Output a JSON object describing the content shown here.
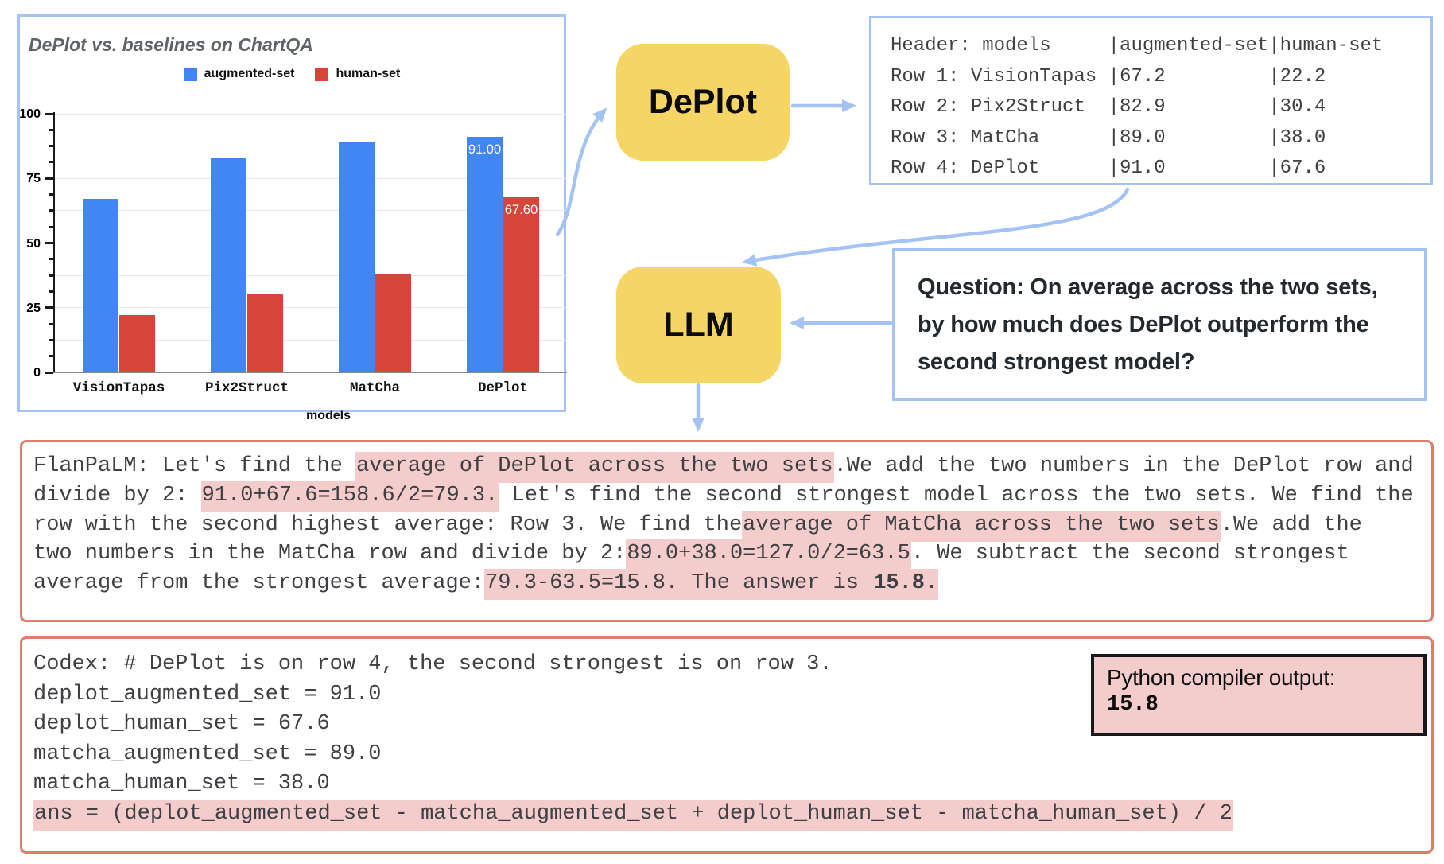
{
  "chart_data": {
    "type": "bar",
    "title": "DePlot vs. baselines on ChartQA",
    "categories": [
      "VisionTapas",
      "Pix2Struct",
      "MatCha",
      "DePlot"
    ],
    "series": [
      {
        "name": "augmented-set",
        "color": "#4285f4",
        "values": [
          67.2,
          82.9,
          89.0,
          91.0
        ]
      },
      {
        "name": "human-set",
        "color": "#d7453a",
        "values": [
          22.2,
          30.4,
          38.0,
          67.6
        ]
      }
    ],
    "bar_value_labels": [
      [
        null,
        null,
        null,
        "91.00"
      ],
      [
        null,
        null,
        null,
        "67.60"
      ]
    ],
    "xlabel": "models",
    "ylabel": "",
    "ylim": [
      0,
      100
    ],
    "yticks": [
      0,
      25,
      50,
      75,
      100
    ],
    "grid": true,
    "legend_position": "top"
  },
  "pipeline": {
    "deplot_label": "DePlot",
    "llm_label": "LLM"
  },
  "table_output": {
    "lines": [
      "Header: models     |augmented-set|human-set",
      "Row 1: VisionTapas |67.2         |22.2",
      "Row 2: Pix2Struct  |82.9         |30.4",
      "Row 3: MatCha      |89.0         |38.0",
      "Row 4: DePlot      |91.0         |67.6"
    ]
  },
  "question": {
    "lines": [
      "Question: On average across the two sets,",
      "by how much does DePlot outperform the",
      "second strongest model?"
    ]
  },
  "flanpalm_answer": {
    "lines": [
      [
        {
          "t": "FlanPaLM: Let's find the "
        },
        {
          "t": "average of DePlot across the two sets",
          "h": true
        },
        {
          "t": "."
        },
        {
          "t": "We add the two numbers in the DePlot row and"
        }
      ],
      [
        {
          "t": "divide by 2: "
        },
        {
          "t": "91.0+67.6=158.6/2=79.3.",
          "h": true
        },
        {
          "t": " Let's find the second strongest model across the two sets. We find the"
        }
      ],
      [
        {
          "t": "row with the second highest average: Row 3. We find the"
        },
        {
          "t": "average of MatCha across the two sets",
          "h": true
        },
        {
          "t": ".We add the"
        }
      ],
      [
        {
          "t": "two numbers in the MatCha row and divide by 2:"
        },
        {
          "t": "89.0+38.0=127.0/2=63.5",
          "h": true
        },
        {
          "t": ". We subtract the second strongest"
        }
      ],
      [
        {
          "t": "average from the strongest average:"
        },
        {
          "t": "79.3-63.5=15.8. The answer is ",
          "h": true
        },
        {
          "t": "15.8.",
          "h": true,
          "b": true
        }
      ]
    ]
  },
  "codex_answer": {
    "lines": [
      [
        {
          "t": "Codex: # DePlot is on row 4, the second strongest is on row 3."
        }
      ],
      [
        {
          "t": "deplot_augmented_set = 91.0"
        }
      ],
      [
        {
          "t": "deplot_human_set = 67.6"
        }
      ],
      [
        {
          "t": "matcha_augmented_set = 89.0"
        }
      ],
      [
        {
          "t": "matcha_human_set = 38.0"
        }
      ],
      [
        {
          "t": "ans = (deplot_augmented_set - matcha_augmented_set + deplot_human_set - matcha_human_set) / 2",
          "h": true
        }
      ]
    ]
  },
  "compiler_output": {
    "title": "Python compiler output:",
    "value": "15.8"
  },
  "colors": {
    "box_border_blue": "#a4c2f4",
    "arrow_blue": "#a4c2f4",
    "node_yellow": "#f5d565",
    "box_border_red": "#dd7e6b",
    "highlight_pink": "#f3cccb",
    "bar_blue": "#4285f4",
    "bar_red": "#d7453a",
    "mono_text": "#3e4043"
  }
}
